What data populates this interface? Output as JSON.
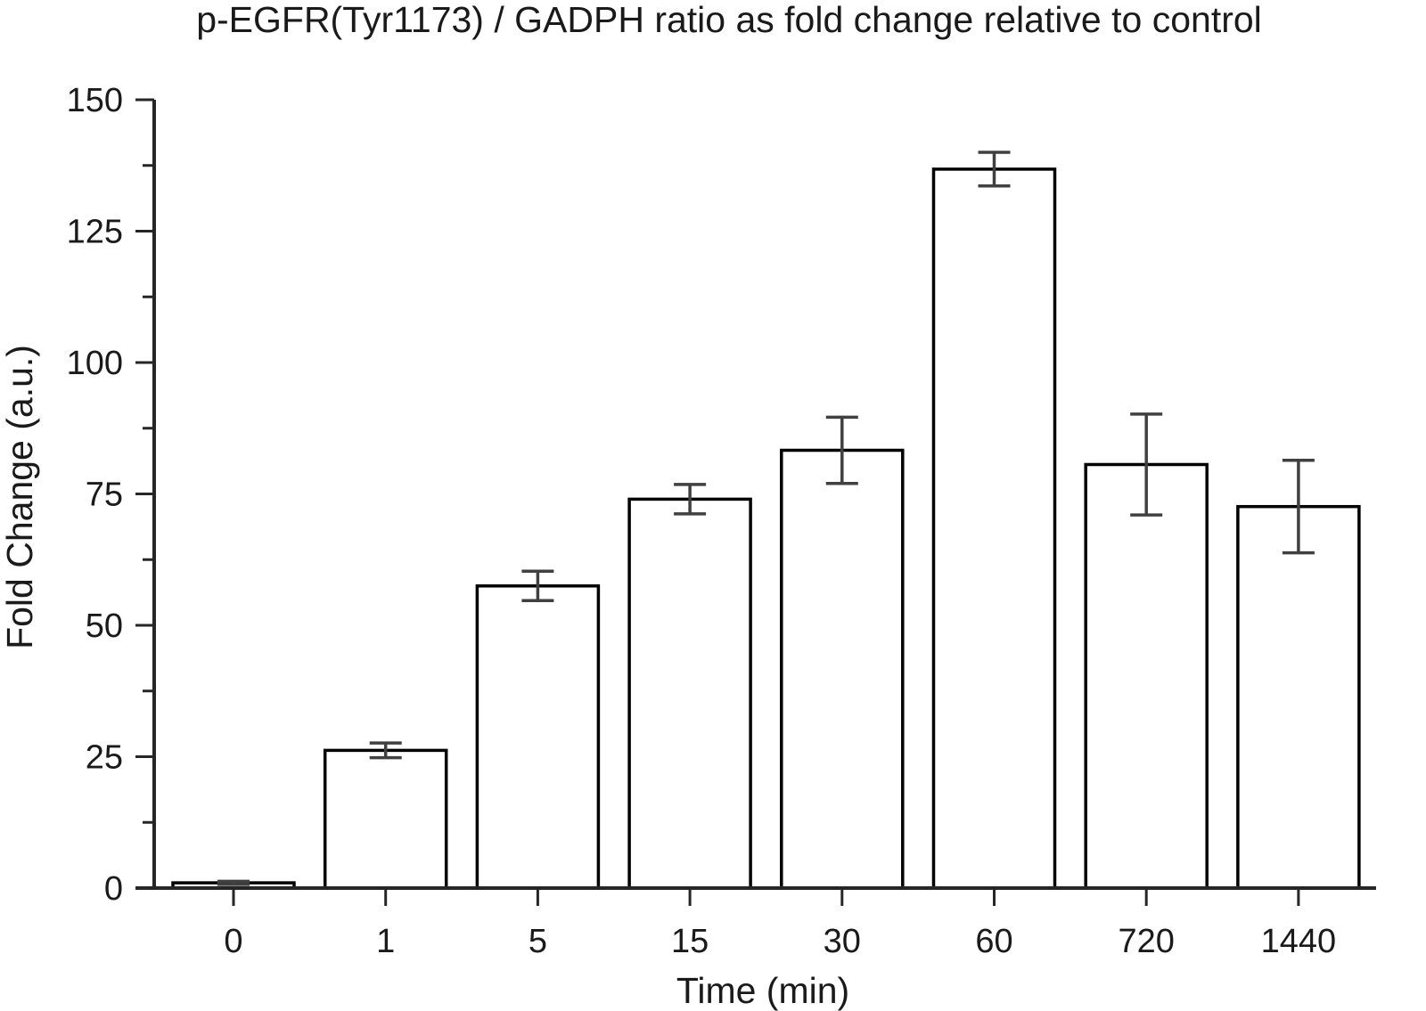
{
  "chart_data": {
    "type": "bar",
    "title": "p-EGFR(Tyr1173) / GADPH ratio as fold change relative to control",
    "xlabel": "Time (min)",
    "ylabel": "Fold Change (a.u.)",
    "categories": [
      "0",
      "1",
      "5",
      "15",
      "30",
      "60",
      "720",
      "1440"
    ],
    "values": [
      1,
      26.2,
      57.5,
      74,
      83.3,
      136.8,
      80.6,
      72.6
    ],
    "error": [
      0.3,
      1.4,
      2.8,
      2.8,
      6.3,
      3.2,
      9.6,
      8.8
    ],
    "ylim": [
      0,
      150
    ],
    "yticks": [
      0,
      25,
      50,
      75,
      100,
      125,
      150
    ],
    "yminor_step": 12.5,
    "bar_fill": "#ffffff",
    "bar_edge": "#000000",
    "error_color": "#404040",
    "grid": false,
    "legend": "none"
  }
}
